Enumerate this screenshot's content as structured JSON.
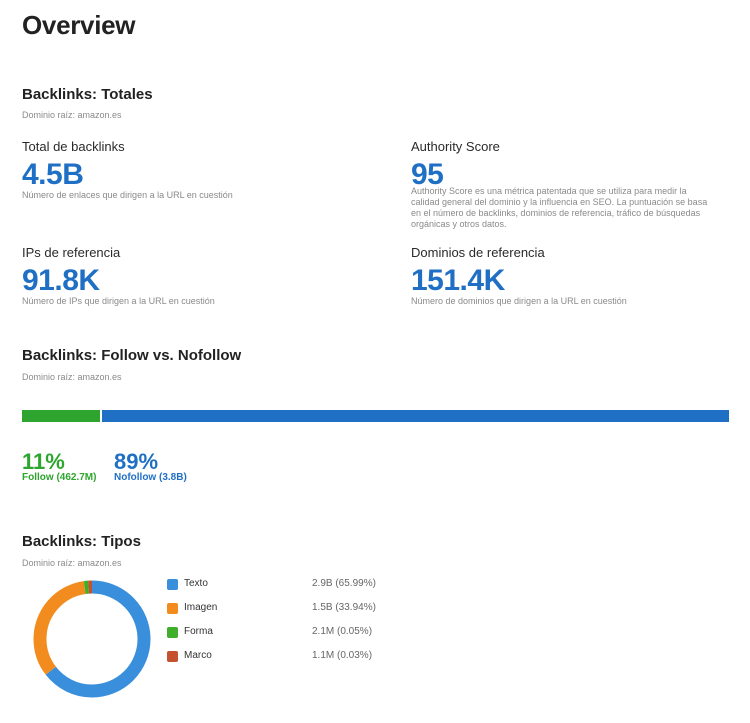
{
  "page": {
    "title": "Overview"
  },
  "totales": {
    "title": "Backlinks: Totales",
    "subtitle": "Dominio raíz: amazon.es",
    "metrics": [
      {
        "label": "Total de backlinks",
        "value": "4.5B",
        "desc": "Número de enlaces que dirigen a la URL en cuestión"
      },
      {
        "label": "Authority Score",
        "value": "95",
        "desc": "Authority Score es una métrica patentada que se utiliza para medir la calidad general del dominio y la influencia en SEO. La puntuación se basa en el número de backlinks, dominios de referencia, tráfico de búsquedas orgánicas y otros datos."
      },
      {
        "label": "IPs de referencia",
        "value": "91.8K",
        "desc": "Número de IPs que dirigen a la URL en cuestión"
      },
      {
        "label": "Dominios de referencia",
        "value": "151.4K",
        "desc": "Número de dominios que dirigen a la URL en cuestión"
      }
    ]
  },
  "follow": {
    "title": "Backlinks: Follow vs. Nofollow",
    "subtitle": "Dominio raíz: amazon.es",
    "follow_fraction": 0.11,
    "follow_color": "#2ea52e",
    "nofollow_color": "#1f6fc5",
    "follow_pct": "11%",
    "follow_label": "Follow (462.7M)",
    "nofollow_pct": "89%",
    "nofollow_label": "Nofollow (3.8B)"
  },
  "tipos": {
    "title": "Backlinks: Tipos",
    "subtitle": "Dominio raíz: amazon.es",
    "items": [
      {
        "label": "Texto",
        "value": "2.9B (65.99%)",
        "share": 65.99,
        "color": "#3a8fdd"
      },
      {
        "label": "Imagen",
        "value": "1.5B (33.94%)",
        "share": 33.94,
        "color": "#f28c1e"
      },
      {
        "label": "Forma",
        "value": "2.1M (0.05%)",
        "share": 0.05,
        "color": "#3fae2a"
      },
      {
        "label": "Marco",
        "value": "1.1M (0.03%)",
        "share": 0.03,
        "color": "#c4522f"
      }
    ]
  }
}
